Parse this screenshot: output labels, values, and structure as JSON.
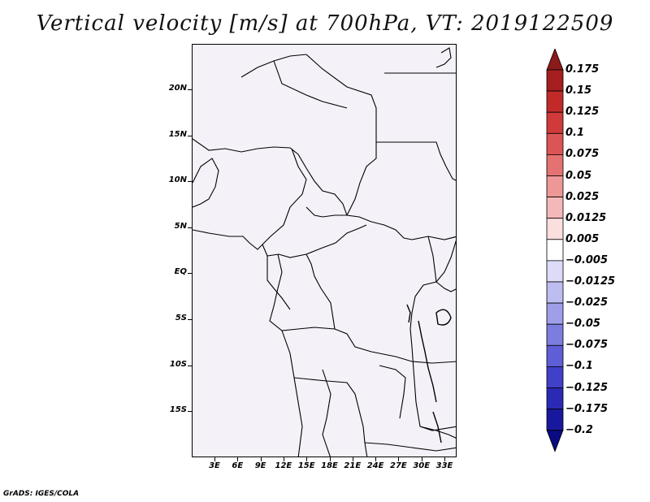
{
  "title": "Vertical velocity [m/s] at 700hPa, VT: 2019122509",
  "footer": "GrADS: IGES/COLA",
  "map": {
    "lat_labels": [
      "20N",
      "15N",
      "10N",
      "5N",
      "EQ",
      "5S",
      "10S",
      "15S"
    ],
    "lon_labels": [
      "3E",
      "6E",
      "9E",
      "12E",
      "15E",
      "18E",
      "21E",
      "24E",
      "27E",
      "30E",
      "33E"
    ],
    "background_color": "#f4f2f8"
  },
  "colorbar": {
    "labels": [
      "0.175",
      "0.15",
      "0.125",
      "0.1",
      "0.075",
      "0.05",
      "0.025",
      "0.0125",
      "0.005",
      "−0.005",
      "−0.0125",
      "−0.025",
      "−0.05",
      "−0.075",
      "−0.1",
      "−0.125",
      "−0.175",
      "−0.2"
    ],
    "colors": [
      "#8b1a1a",
      "#a61e1e",
      "#c22a2a",
      "#d03a3a",
      "#dc5555",
      "#e57272",
      "#ee9797",
      "#f5b8b8",
      "#fbdede",
      "#ffffff",
      "#dcdcf8",
      "#bdbdf1",
      "#9e9ee9",
      "#7d7de0",
      "#5e5ed6",
      "#4040c8",
      "#2a2ab5",
      "#18189e",
      "#0a0a82"
    ]
  },
  "chart_data": {
    "type": "heatmap",
    "title": "Vertical velocity [m/s] at 700hPa, VT: 2019122509",
    "variable": "Vertical velocity",
    "units": "m/s",
    "level": "700hPa",
    "valid_time": "2019122509",
    "lon_ticks": [
      "3E",
      "6E",
      "9E",
      "12E",
      "15E",
      "18E",
      "21E",
      "24E",
      "27E",
      "30E",
      "33E"
    ],
    "lat_ticks": [
      "20N",
      "15N",
      "10N",
      "5N",
      "EQ",
      "5S",
      "10S",
      "15S"
    ],
    "contour_levels": [
      -0.2,
      -0.175,
      -0.125,
      -0.1,
      -0.075,
      -0.05,
      -0.025,
      -0.0125,
      -0.005,
      0.005,
      0.0125,
      0.025,
      0.05,
      0.075,
      0.1,
      0.125,
      0.15,
      0.175
    ]
  }
}
